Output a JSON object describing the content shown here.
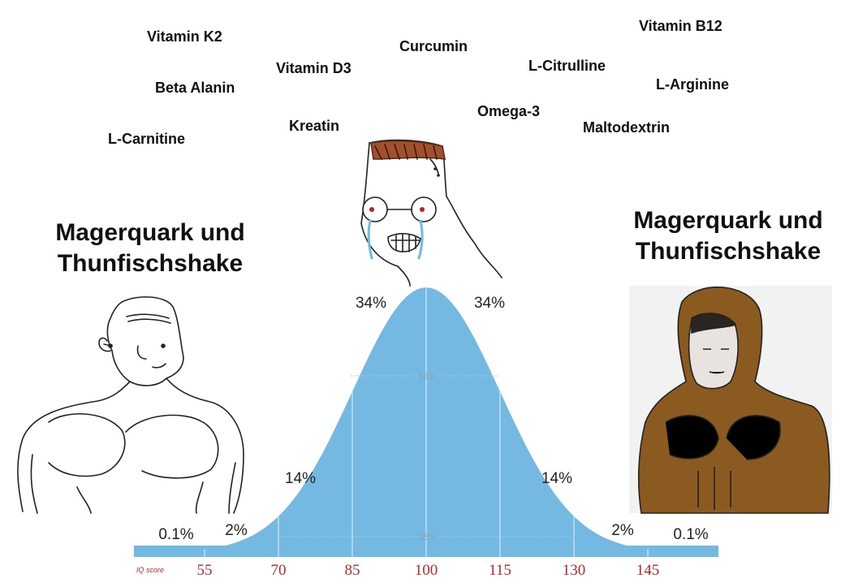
{
  "supplements": [
    "Vitamin K2",
    "Beta Alanin",
    "L-Carnitine",
    "Vitamin D3",
    "Kreatin",
    "Curcumin",
    "Omega-3",
    "L-Citrulline",
    "Maltodextrin",
    "Vitamin B12",
    "L-Arginine"
  ],
  "left_caption": {
    "line1": "Magerquark und",
    "line2": "Thunfischshake"
  },
  "right_caption": {
    "line1": "Magerquark und",
    "line2": "Thunfischshake"
  },
  "chart_data": {
    "type": "area",
    "x_label": "IQ score",
    "x_ticks": [
      "55",
      "70",
      "85",
      "100",
      "115",
      "130",
      "145"
    ],
    "region_labels": [
      "0.1%",
      "2%",
      "14%",
      "34%",
      "34%",
      "14%",
      "2%",
      "0.1%"
    ],
    "band_labels": [
      "68%",
      "95%"
    ],
    "color": "#74b9e2"
  }
}
